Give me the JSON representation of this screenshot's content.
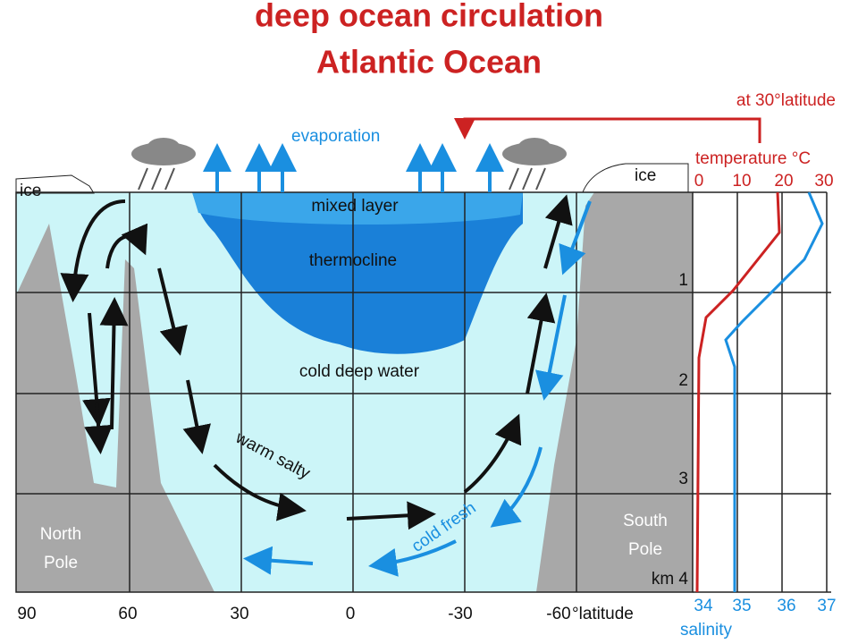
{
  "title": {
    "line1": "deep ocean circulation",
    "line2": "Atlantic Ocean"
  },
  "annotation": "at 30°latitude",
  "labels": {
    "evaporation": "evaporation",
    "ice_left": "ice",
    "ice_right": "ice",
    "mixed_layer": "mixed layer",
    "thermocline": "thermocline",
    "cold_deep_water": "cold deep water",
    "warm_salty": "warm salty",
    "cold_fresh": "cold fresh",
    "north_pole": [
      "North",
      "Pole"
    ],
    "south_pole": [
      "South",
      "Pole"
    ]
  },
  "latitude_axis": {
    "ticks": [
      "90",
      "60",
      "30",
      "0",
      "-30",
      "-60"
    ],
    "label": "°latitude"
  },
  "depth_axis": {
    "ticks": [
      "1",
      "2",
      "3",
      "km 4"
    ]
  },
  "temperature_axis": {
    "label": "temperature °C",
    "ticks": [
      "0",
      "10",
      "20",
      "30"
    ]
  },
  "salinity_axis": {
    "label": "salinity",
    "ticks": [
      "34",
      "35",
      "36",
      "37"
    ]
  }
}
